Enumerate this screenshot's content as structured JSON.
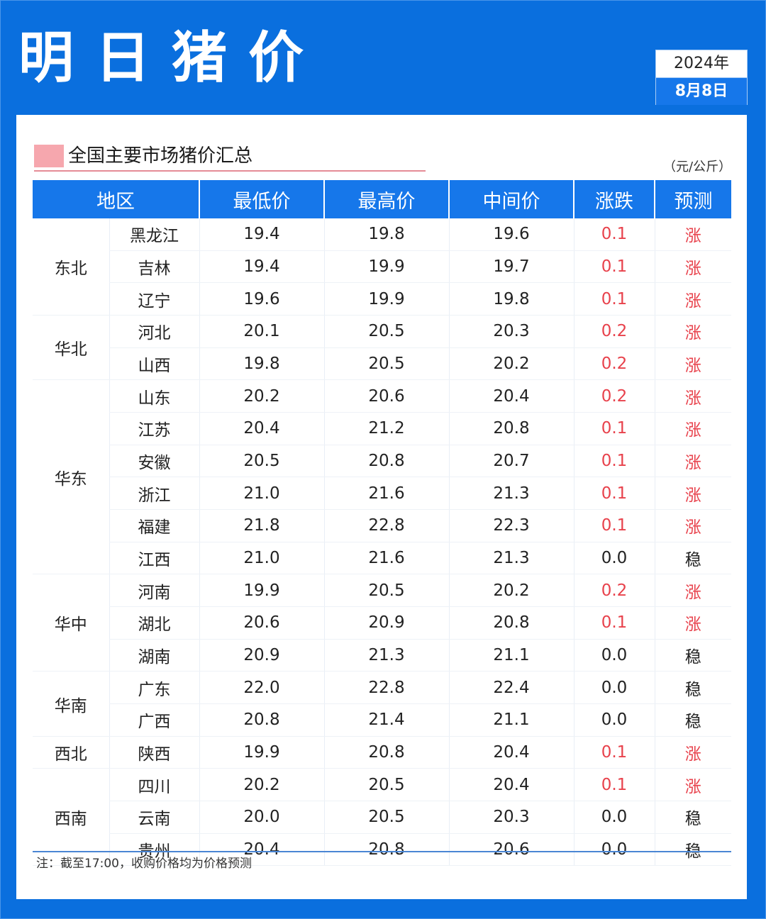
{
  "title": "明日猪价",
  "date": {
    "year": "2024年",
    "day": "8月8日"
  },
  "section": {
    "title": "全国主要市场猪价汇总",
    "unit": "（元/公斤）"
  },
  "table": {
    "headers": [
      "地区",
      "最低价",
      "最高价",
      "中间价",
      "涨跌",
      "预测"
    ],
    "groups": [
      {
        "region": "东北",
        "rows": [
          {
            "province": "黑龙江",
            "low": "19.4",
            "high": "19.8",
            "mid": "19.6",
            "change": "0.1",
            "forecast": "涨"
          },
          {
            "province": "吉林",
            "low": "19.4",
            "high": "19.9",
            "mid": "19.7",
            "change": "0.1",
            "forecast": "涨"
          },
          {
            "province": "辽宁",
            "low": "19.6",
            "high": "19.9",
            "mid": "19.8",
            "change": "0.1",
            "forecast": "涨"
          }
        ]
      },
      {
        "region": "华北",
        "rows": [
          {
            "province": "河北",
            "low": "20.1",
            "high": "20.5",
            "mid": "20.3",
            "change": "0.2",
            "forecast": "涨"
          },
          {
            "province": "山西",
            "low": "19.8",
            "high": "20.5",
            "mid": "20.2",
            "change": "0.2",
            "forecast": "涨"
          }
        ]
      },
      {
        "region": "华东",
        "rows": [
          {
            "province": "山东",
            "low": "20.2",
            "high": "20.6",
            "mid": "20.4",
            "change": "0.2",
            "forecast": "涨"
          },
          {
            "province": "江苏",
            "low": "20.4",
            "high": "21.2",
            "mid": "20.8",
            "change": "0.1",
            "forecast": "涨"
          },
          {
            "province": "安徽",
            "low": "20.5",
            "high": "20.8",
            "mid": "20.7",
            "change": "0.1",
            "forecast": "涨"
          },
          {
            "province": "浙江",
            "low": "21.0",
            "high": "21.6",
            "mid": "21.3",
            "change": "0.1",
            "forecast": "涨"
          },
          {
            "province": "福建",
            "low": "21.8",
            "high": "22.8",
            "mid": "22.3",
            "change": "0.1",
            "forecast": "涨"
          },
          {
            "province": "江西",
            "low": "21.0",
            "high": "21.6",
            "mid": "21.3",
            "change": "0.0",
            "forecast": "稳"
          }
        ]
      },
      {
        "region": "华中",
        "rows": [
          {
            "province": "河南",
            "low": "19.9",
            "high": "20.5",
            "mid": "20.2",
            "change": "0.2",
            "forecast": "涨"
          },
          {
            "province": "湖北",
            "low": "20.6",
            "high": "20.9",
            "mid": "20.8",
            "change": "0.1",
            "forecast": "涨"
          },
          {
            "province": "湖南",
            "low": "20.9",
            "high": "21.3",
            "mid": "21.1",
            "change": "0.0",
            "forecast": "稳"
          }
        ]
      },
      {
        "region": "华南",
        "rows": [
          {
            "province": "广东",
            "low": "22.0",
            "high": "22.8",
            "mid": "22.4",
            "change": "0.0",
            "forecast": "稳"
          },
          {
            "province": "广西",
            "low": "20.8",
            "high": "21.4",
            "mid": "21.1",
            "change": "0.0",
            "forecast": "稳"
          }
        ]
      },
      {
        "region": "西北",
        "rows": [
          {
            "province": "陕西",
            "low": "19.9",
            "high": "20.8",
            "mid": "20.4",
            "change": "0.1",
            "forecast": "涨"
          }
        ]
      },
      {
        "region": "西南",
        "rows": [
          {
            "province": "四川",
            "low": "20.2",
            "high": "20.5",
            "mid": "20.4",
            "change": "0.1",
            "forecast": "涨"
          },
          {
            "province": "云南",
            "low": "20.0",
            "high": "20.5",
            "mid": "20.3",
            "change": "0.0",
            "forecast": "稳"
          },
          {
            "province": "贵州",
            "low": "20.4",
            "high": "20.8",
            "mid": "20.6",
            "change": "0.0",
            "forecast": "稳"
          }
        ]
      }
    ]
  },
  "footnote": "注：截至17:00，收购价格均为价格预测",
  "colors": {
    "background": "#0a6fde",
    "header": "#1677ea",
    "up": "#e8424c",
    "section_mark": "#f6a7ae"
  }
}
